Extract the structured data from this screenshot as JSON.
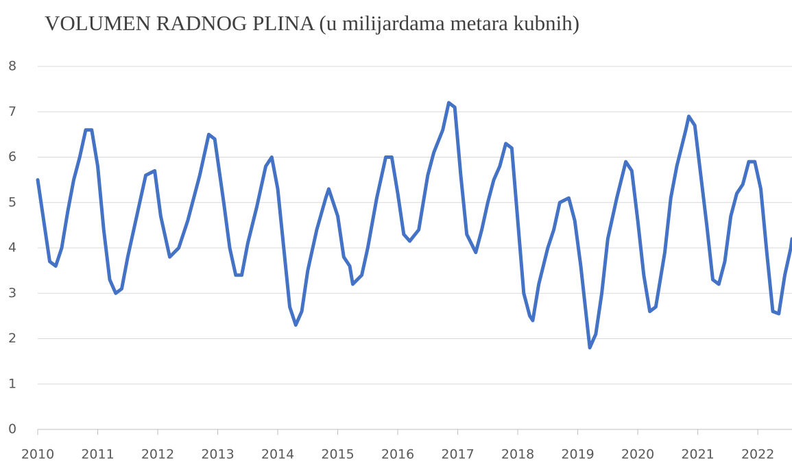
{
  "chart_data": {
    "type": "line",
    "title": "VOLUMEN RADNOG PLINA (u milijardama metara kubnih)",
    "x": [
      2010.0,
      2010.1,
      2010.2,
      2010.3,
      2010.4,
      2010.5,
      2010.6,
      2010.7,
      2010.8,
      2010.9,
      2011.0,
      2011.1,
      2011.2,
      2011.3,
      2011.4,
      2011.5,
      2011.6,
      2011.7,
      2011.8,
      2011.95,
      2012.05,
      2012.15,
      2012.2,
      2012.35,
      2012.5,
      2012.7,
      2012.85,
      2012.95,
      2013.1,
      2013.2,
      2013.3,
      2013.4,
      2013.5,
      2013.65,
      2013.8,
      2013.9,
      2014.0,
      2014.1,
      2014.2,
      2014.3,
      2014.4,
      2014.5,
      2014.65,
      2014.8,
      2014.85,
      2015.0,
      2015.1,
      2015.2,
      2015.25,
      2015.4,
      2015.5,
      2015.65,
      2015.8,
      2015.9,
      2016.0,
      2016.1,
      2016.2,
      2016.35,
      2016.5,
      2016.6,
      2016.75,
      2016.85,
      2016.95,
      2017.05,
      2017.15,
      2017.3,
      2017.4,
      2017.5,
      2017.6,
      2017.7,
      2017.8,
      2017.9,
      2018.0,
      2018.1,
      2018.2,
      2018.25,
      2018.35,
      2018.5,
      2018.6,
      2018.7,
      2018.85,
      2018.95,
      2019.05,
      2019.2,
      2019.3,
      2019.4,
      2019.5,
      2019.65,
      2019.8,
      2019.9,
      2020.0,
      2020.1,
      2020.2,
      2020.3,
      2020.45,
      2020.55,
      2020.65,
      2020.8,
      2020.85,
      2020.95,
      2021.05,
      2021.15,
      2021.25,
      2021.35,
      2021.45,
      2021.55,
      2021.65,
      2021.75,
      2021.85,
      2021.95,
      2022.05,
      2022.15,
      2022.25,
      2022.35,
      2022.45,
      2022.55,
      2022.57
    ],
    "series": [
      {
        "name": "Volumen radnog plina",
        "color": "#4472c4",
        "values": [
          5.5,
          4.6,
          3.7,
          3.6,
          4.0,
          4.8,
          5.5,
          6.0,
          6.6,
          6.6,
          5.8,
          4.4,
          3.3,
          3.0,
          3.1,
          3.8,
          4.4,
          5.0,
          5.6,
          5.7,
          4.7,
          4.1,
          3.8,
          4.0,
          4.6,
          5.6,
          6.5,
          6.4,
          5.0,
          4.0,
          3.4,
          3.4,
          4.1,
          4.9,
          5.8,
          6.0,
          5.3,
          4.0,
          2.7,
          2.3,
          2.6,
          3.5,
          4.4,
          5.1,
          5.3,
          4.7,
          3.8,
          3.6,
          3.2,
          3.4,
          4.0,
          5.1,
          6.0,
          6.0,
          5.2,
          4.3,
          4.15,
          4.4,
          5.6,
          6.1,
          6.6,
          7.2,
          7.1,
          5.6,
          4.3,
          3.9,
          4.4,
          5.0,
          5.5,
          5.8,
          6.3,
          6.2,
          4.6,
          3.0,
          2.5,
          2.4,
          3.2,
          4.0,
          4.4,
          5.0,
          5.1,
          4.6,
          3.6,
          1.8,
          2.1,
          3.0,
          4.2,
          5.1,
          5.9,
          5.7,
          4.6,
          3.4,
          2.6,
          2.7,
          3.9,
          5.1,
          5.8,
          6.6,
          6.9,
          6.7,
          5.6,
          4.5,
          3.3,
          3.2,
          3.7,
          4.7,
          5.2,
          5.4,
          5.9,
          5.9,
          5.3,
          3.9,
          2.6,
          2.55,
          3.4,
          4.0,
          4.2
        ]
      }
    ],
    "xlim": [
      2010,
      2022.57
    ],
    "xticks": [
      2010,
      2011,
      2012,
      2013,
      2014,
      2015,
      2016,
      2017,
      2018,
      2019,
      2020,
      2021,
      2022
    ],
    "ylim": [
      0,
      8
    ],
    "yticks": [
      0,
      1,
      2,
      3,
      4,
      5,
      6,
      7,
      8
    ],
    "grid": true
  }
}
